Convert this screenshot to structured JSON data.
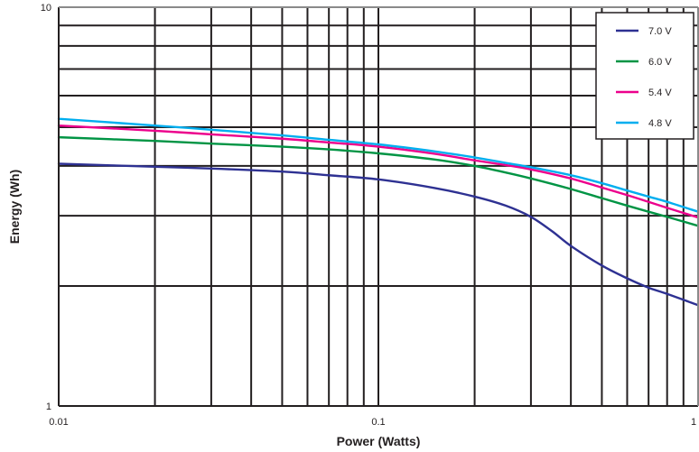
{
  "chart_data": {
    "type": "line",
    "title": "",
    "xlabel": "Power (Watts)",
    "ylabel": "Energy (Wh)",
    "xscale": "log",
    "yscale": "log",
    "xlim": [
      0.01,
      1
    ],
    "ylim": [
      1,
      10
    ],
    "x_tick_labels": [
      "0.01",
      "0.1",
      "1"
    ],
    "y_tick_labels": [
      "1",
      "10"
    ],
    "grid": true,
    "legend_position": "top-right",
    "series": [
      {
        "name": "7.0 V",
        "color": "#2e3192",
        "x": [
          0.01,
          0.02,
          0.03,
          0.05,
          0.07,
          0.1,
          0.15,
          0.2,
          0.25,
          0.3,
          0.35,
          0.4,
          0.5,
          0.6,
          0.7,
          0.8,
          1.0
        ],
        "y": [
          4.05,
          3.98,
          3.94,
          3.87,
          3.79,
          3.7,
          3.52,
          3.35,
          3.18,
          2.98,
          2.74,
          2.52,
          2.25,
          2.09,
          1.98,
          1.91,
          1.79
        ]
      },
      {
        "name": "6.0 V",
        "color": "#009444",
        "x": [
          0.01,
          0.02,
          0.03,
          0.05,
          0.07,
          0.1,
          0.15,
          0.2,
          0.25,
          0.3,
          0.4,
          0.5,
          0.6,
          0.7,
          0.8,
          1.0
        ],
        "y": [
          4.72,
          4.62,
          4.55,
          4.47,
          4.4,
          4.3,
          4.15,
          4.0,
          3.85,
          3.72,
          3.5,
          3.32,
          3.18,
          3.07,
          2.98,
          2.83
        ]
      },
      {
        "name": "5.4 V",
        "color": "#ec008c",
        "x": [
          0.01,
          0.02,
          0.03,
          0.05,
          0.07,
          0.1,
          0.15,
          0.2,
          0.25,
          0.3,
          0.4,
          0.5,
          0.6,
          0.7,
          0.8,
          1.0
        ],
        "y": [
          5.05,
          4.9,
          4.8,
          4.68,
          4.58,
          4.47,
          4.29,
          4.13,
          4.02,
          3.92,
          3.72,
          3.53,
          3.38,
          3.25,
          3.14,
          2.97
        ]
      },
      {
        "name": "4.8 V",
        "color": "#00aeef",
        "x": [
          0.01,
          0.02,
          0.03,
          0.05,
          0.07,
          0.1,
          0.15,
          0.2,
          0.25,
          0.3,
          0.4,
          0.5,
          0.6,
          0.7,
          0.8,
          1.0
        ],
        "y": [
          5.25,
          5.05,
          4.93,
          4.77,
          4.65,
          4.53,
          4.35,
          4.2,
          4.07,
          3.97,
          3.79,
          3.62,
          3.47,
          3.35,
          3.25,
          3.07
        ]
      }
    ]
  }
}
